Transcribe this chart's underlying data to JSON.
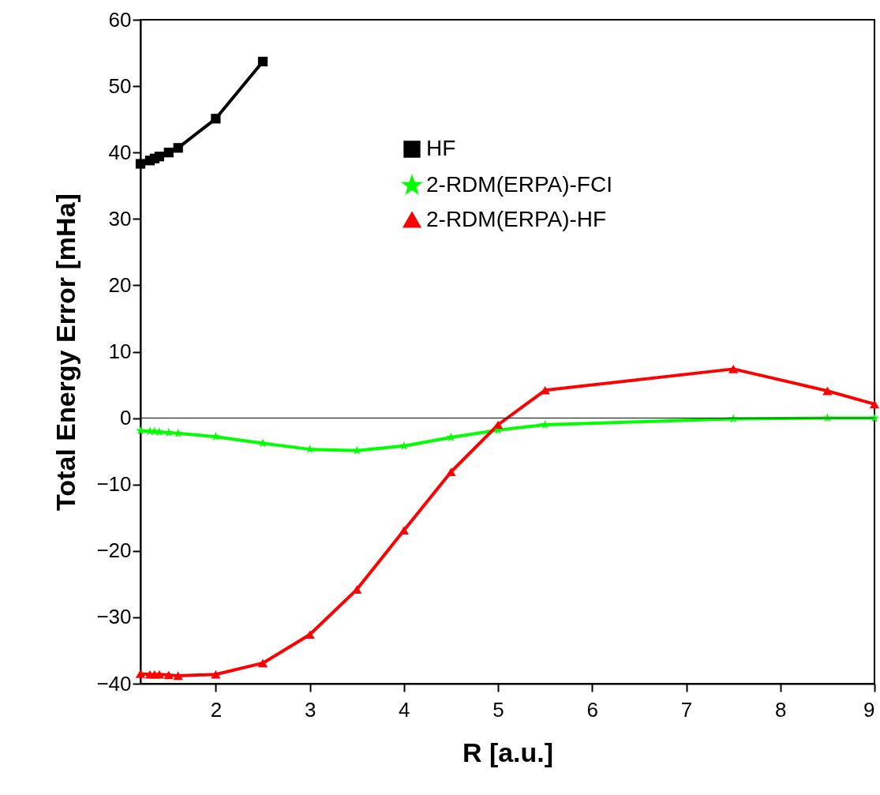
{
  "chart_data": {
    "type": "line",
    "xlabel": "R [a.u.]",
    "ylabel": "Total Energy Error [mHa]",
    "x": [
      1.2,
      1.3,
      1.35,
      1.4,
      1.5,
      1.6,
      2,
      2.5,
      3,
      3.5,
      4,
      4.5,
      5,
      5.5,
      7.5,
      8.5,
      9
    ],
    "series": [
      {
        "name": "HF",
        "color": "#000000",
        "marker": "square",
        "x": [
          1.2,
          1.3,
          1.35,
          1.4,
          1.5,
          1.6,
          2,
          2.5
        ],
        "values": [
          38.3,
          38.8,
          39.1,
          39.4,
          40.0,
          40.7,
          45.1,
          53.7
        ]
      },
      {
        "name": "2-RDM(ERPA)-FCI",
        "color": "#00ff00",
        "marker": "star",
        "values": [
          -1.9,
          -2.0,
          -2.0,
          -2.1,
          -2.2,
          -2.3,
          -2.8,
          -3.8,
          -4.7,
          -4.9,
          -4.2,
          -2.9,
          -1.8,
          -1.0,
          -0.1,
          0.0,
          0.0
        ]
      },
      {
        "name": "2-RDM(ERPA)-HF",
        "color": "#ff0000",
        "marker": "triangle",
        "values": [
          -38.5,
          -38.6,
          -38.6,
          -38.6,
          -38.7,
          -38.8,
          -38.6,
          -36.9,
          -32.6,
          -25.8,
          -16.9,
          -8.1,
          -1.0,
          4.2,
          7.4,
          4.1,
          2.1
        ]
      }
    ],
    "xlim": [
      1.2,
      9
    ],
    "xticks": [
      2,
      3,
      4,
      5,
      6,
      7,
      8,
      9
    ],
    "ylim": [
      -40,
      60
    ],
    "yticks": [
      -40,
      -30,
      -20,
      -10,
      0,
      10,
      20,
      30,
      40,
      50,
      60
    ],
    "ref_lines": [
      {
        "axis": "y",
        "value": 0,
        "color": "#000000"
      }
    ],
    "grid": false,
    "legend": "top right",
    "line_style": "solid"
  }
}
